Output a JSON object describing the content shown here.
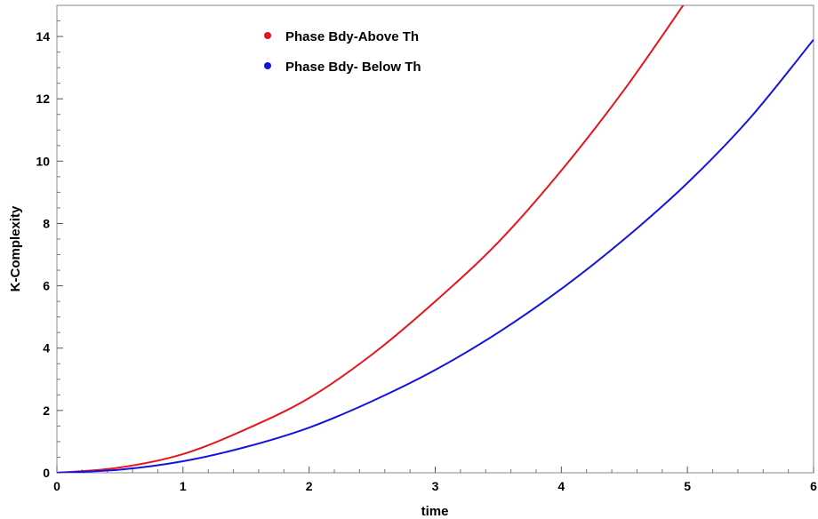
{
  "chart_data": {
    "type": "line",
    "xlabel": "time",
    "ylabel": "K-Complexity",
    "xlim": [
      0,
      6
    ],
    "ylim": [
      0,
      15
    ],
    "x_ticks": [
      "0",
      "1",
      "2",
      "3",
      "4",
      "5",
      "6"
    ],
    "y_ticks": [
      "0",
      "2",
      "4",
      "6",
      "8",
      "10",
      "12",
      "14"
    ],
    "grid": false,
    "legend_position": "top-center",
    "series": [
      {
        "name": "Phase Bdy-Above Th",
        "color": "#e8141c",
        "x": [
          0,
          0.5,
          1,
          1.5,
          2,
          2.5,
          3,
          3.5,
          4,
          4.5,
          5
        ],
        "y": [
          0,
          0.17,
          0.6,
          1.4,
          2.4,
          3.8,
          5.5,
          7.4,
          9.7,
          12.3,
          15.2
        ]
      },
      {
        "name": "Phase Bdy- Below Th",
        "color": "#1414e0",
        "x": [
          0,
          0.5,
          1,
          1.5,
          2,
          2.5,
          3,
          3.5,
          4,
          4.5,
          5,
          5.5,
          6
        ],
        "y": [
          0,
          0.1,
          0.37,
          0.83,
          1.45,
          2.3,
          3.3,
          4.5,
          5.9,
          7.5,
          9.3,
          11.4,
          13.9
        ]
      }
    ]
  }
}
